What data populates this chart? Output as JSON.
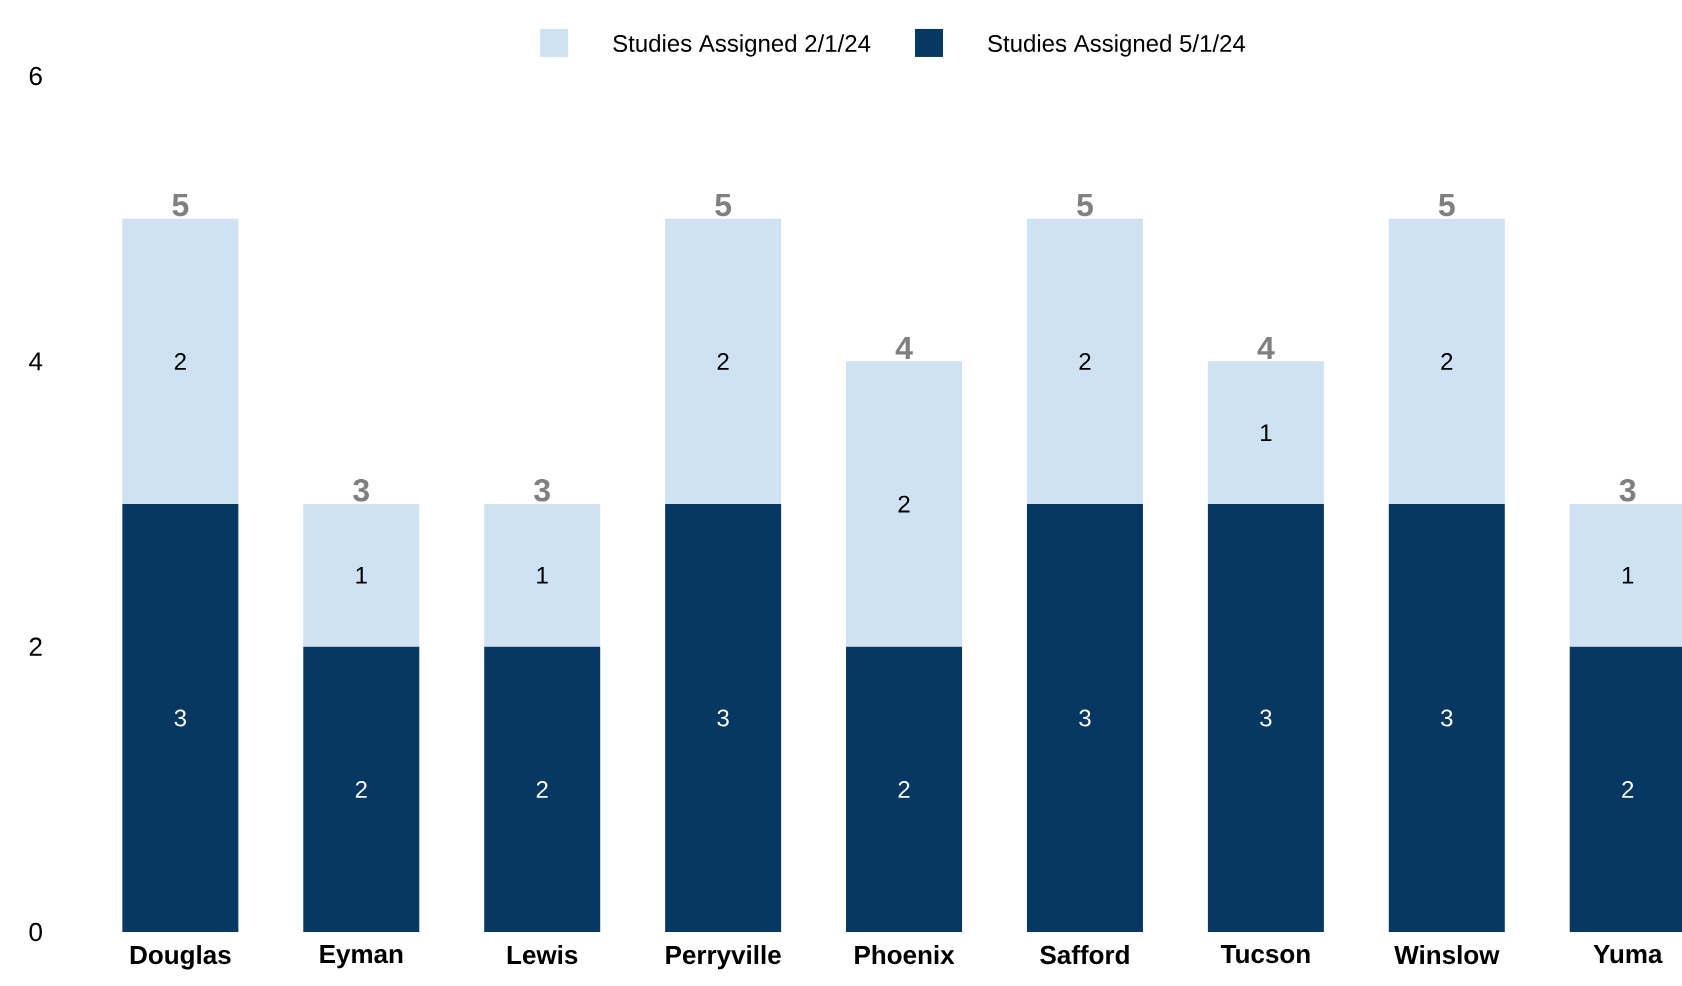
{
  "chart_data": {
    "type": "bar",
    "stacked": true,
    "categories": [
      "Douglas",
      "Eyman",
      "Lewis",
      "Perryville",
      "Phoenix",
      "Safford",
      "Tucson",
      "Winslow",
      "Yuma"
    ],
    "series": [
      {
        "name": "Studies Assigned 5/1/24",
        "color": "#073763",
        "values": [
          3,
          2,
          2,
          3,
          2,
          3,
          3,
          3,
          2
        ]
      },
      {
        "name": "Studies Assigned 2/1/24",
        "color": "#cfe2f3",
        "values": [
          2,
          1,
          1,
          2,
          2,
          2,
          1,
          2,
          1
        ]
      }
    ],
    "totals": [
      "5",
      "3",
      "3",
      "5",
      "4",
      "5",
      "4",
      "5",
      "3"
    ],
    "data_labels": true,
    "ylim": [
      0,
      6
    ],
    "yticks": [
      0,
      2,
      4,
      6
    ],
    "grid": false,
    "legend": "top"
  }
}
